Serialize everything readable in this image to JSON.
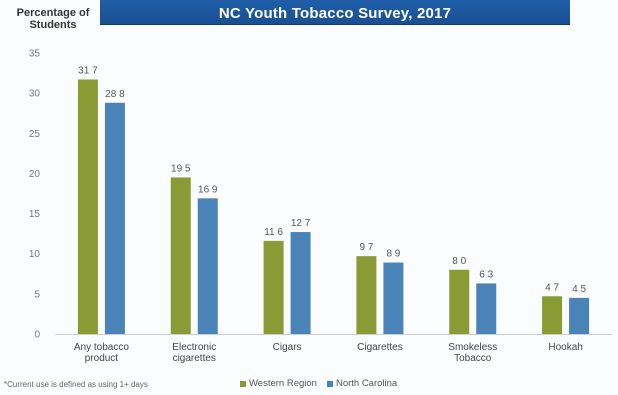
{
  "chart_data": {
    "type": "bar",
    "title": "NC Youth Tobacco Survey, 2017",
    "ylabel": "Percentage of Students",
    "xlabel": "",
    "ylim": [
      0,
      35
    ],
    "yticks": [
      0,
      5,
      10,
      15,
      20,
      25,
      30,
      35
    ],
    "grid": false,
    "legend_position": "bottom",
    "categories": [
      [
        "Any tobacco",
        "product"
      ],
      [
        "Electronic",
        "cigarettes"
      ],
      [
        "Cigars"
      ],
      [
        "Cigarettes"
      ],
      [
        "Smokeless",
        "Tobacco"
      ],
      [
        "Hookah"
      ]
    ],
    "series": [
      {
        "name": "Western Region",
        "color": "#8a9a35",
        "values": [
          31.7,
          19.5,
          11.6,
          9.7,
          8.0,
          4.7
        ],
        "labels": [
          "31 7",
          "19 5",
          "11 6",
          "9 7",
          "8 0",
          "4 7"
        ]
      },
      {
        "name": "North Carolina",
        "color": "#4a83b8",
        "values": [
          28.8,
          16.9,
          12.7,
          8.9,
          6.3,
          4.5
        ],
        "labels": [
          "28 8",
          "16 9",
          "12 7",
          "8 9",
          "6 3",
          "4 5"
        ]
      }
    ],
    "footnote": "*Current use is defined as using 1+ days"
  }
}
